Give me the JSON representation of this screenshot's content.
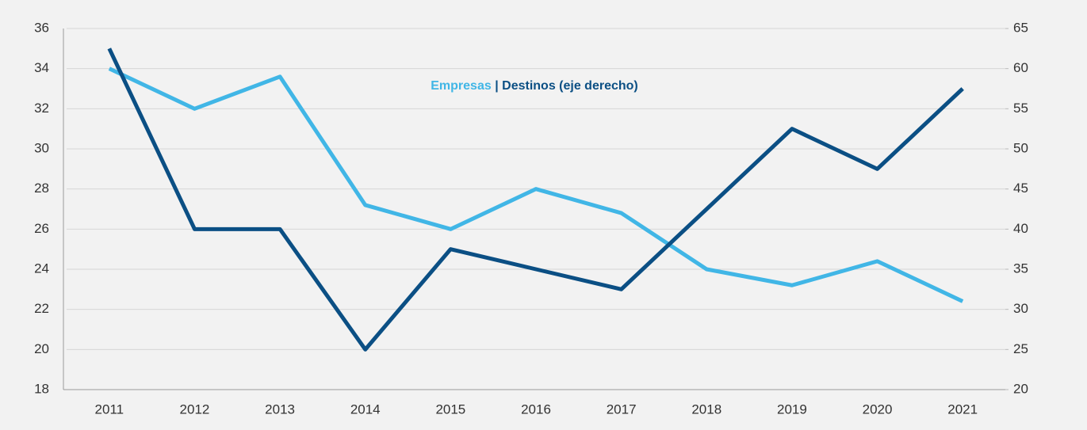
{
  "chart_data": {
    "type": "line",
    "categories": [
      "2011",
      "2012",
      "2013",
      "2014",
      "2015",
      "2016",
      "2017",
      "2018",
      "2019",
      "2020",
      "2021"
    ],
    "series": [
      {
        "name": "Empresas",
        "color": "#41b6e6",
        "values": [
          34,
          32,
          33.6,
          27.2,
          26,
          28,
          26.8,
          24,
          23.2,
          24.4,
          22.4
        ]
      },
      {
        "name": "Destinos (eje derecho)",
        "color": "#0b4f84",
        "axis": "y2",
        "values": [
          62.5,
          40,
          40,
          25,
          37.5,
          35,
          32.5,
          42.5,
          52.5,
          47.5,
          57.5
        ]
      }
    ],
    "legend_separator": "|",
    "ylim": [
      18,
      36
    ],
    "yticks": [
      18,
      20,
      22,
      24,
      26,
      28,
      30,
      32,
      34,
      36
    ],
    "y2lim": [
      20,
      65
    ],
    "y2ticks": [
      20,
      25,
      30,
      35,
      40,
      45,
      50,
      55,
      60,
      65
    ],
    "grid": true
  }
}
